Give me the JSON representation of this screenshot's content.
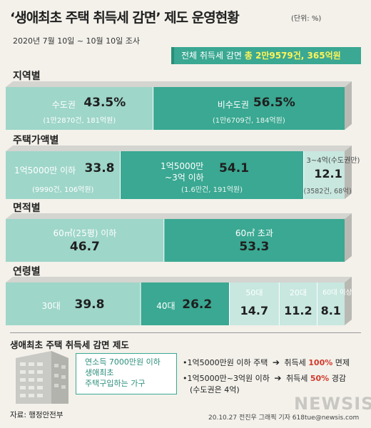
{
  "header": {
    "title": "‘생애최초 주택 취득세 감면’ 제도 운영현황",
    "unit": "(단위: %)",
    "survey_period": "2020년 7월 10일 ~ 10월 10일 조사"
  },
  "summary": {
    "prefix": "전체 취득세 감면",
    "highlight": "총 2만9579건, 365억원"
  },
  "colors": {
    "teal_dark": "#3aa892",
    "teal_light": "#9ed6c9",
    "teal_pale": "#c7e7df",
    "top_face": "#d4d4d0",
    "side_face": "#b9b9b4"
  },
  "chart_data": [
    {
      "type": "bar",
      "title": "지역별",
      "orientation": "horizontal-stacked-100",
      "segments": [
        {
          "name": "수도권",
          "value": 43.5,
          "unit": "%",
          "detail": "(1만2870건, 181억원)"
        },
        {
          "name": "비수도권",
          "value": 56.5,
          "unit": "%",
          "detail": "(1만6709건, 184억원)"
        }
      ]
    },
    {
      "type": "bar",
      "title": "주택가액별",
      "orientation": "horizontal-stacked-100",
      "segments": [
        {
          "name": "1억5000만 이하",
          "value": 33.8,
          "detail": "(9990건, 106억원)"
        },
        {
          "name": "1억5000만 ~3억 이하",
          "line1": "1억5000만",
          "line2": "~3억 이하",
          "value": 54.1,
          "detail": "(1.6만건, 191억원)"
        },
        {
          "name": "3~4억(수도권만)",
          "value": 12.1,
          "detail": "(3582건, 68억)"
        }
      ]
    },
    {
      "type": "bar",
      "title": "면적별",
      "orientation": "horizontal-stacked-100",
      "segments": [
        {
          "name": "60㎡(25평) 이하",
          "value": 46.7
        },
        {
          "name": "60㎡ 초과",
          "value": 53.3
        }
      ]
    },
    {
      "type": "bar",
      "title": "연령별",
      "orientation": "horizontal-stacked-100",
      "segments": [
        {
          "name": "30대",
          "value": 39.8
        },
        {
          "name": "40대",
          "value": 26.2
        },
        {
          "name": "50대",
          "value": 14.7
        },
        {
          "name": "20대",
          "value": 11.2
        },
        {
          "name": "60대 이상",
          "value": 8.1
        }
      ]
    }
  ],
  "info": {
    "title": "생애최초 주택 취득세 감면 제도",
    "target_lines": [
      "연소득 7000만원 이하",
      "생애최초",
      "주택구입하는 가구"
    ],
    "rules": [
      {
        "condition": "•1억5000만원 이하 주택",
        "result_prefix": "취득세",
        "result_value": "100%",
        "result_suffix": "면제"
      },
      {
        "condition": "•1억5000만~3억원 이하",
        "note": "(수도권은 4억)",
        "result_prefix": "취득세",
        "result_value": "50%",
        "result_suffix": "경감"
      }
    ],
    "arrow_icon": "➔"
  },
  "footer": {
    "source": "자료: 행정안전부",
    "credit": "20.10.27 전진우 그래픽 기자 618tue@newsis.com",
    "watermark": "NEWSIS"
  }
}
